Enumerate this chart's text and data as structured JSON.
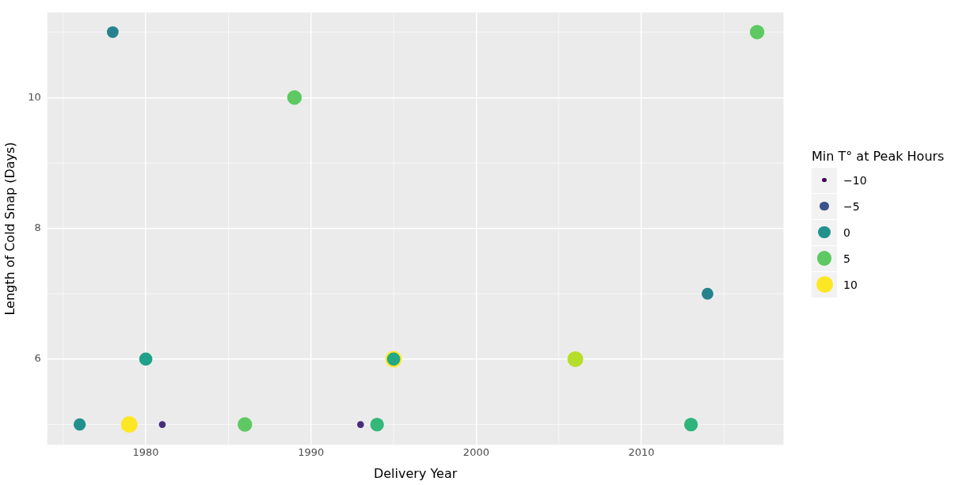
{
  "chart_data": {
    "type": "bubble",
    "xlabel": "Delivery Year",
    "ylabel": "Length of Cold Snap (Days)",
    "legend_title": "Min T° at Peak Hours",
    "grid": true,
    "x": [
      1976,
      1978,
      1979,
      1980,
      1981,
      1986,
      1989,
      1993,
      1994,
      1995,
      1995,
      2006,
      2013,
      2014,
      2017
    ],
    "values": [
      5,
      11,
      5,
      6,
      5,
      5,
      10,
      5,
      5,
      6,
      6,
      6,
      5,
      7,
      11
    ],
    "sizes": [
      0.54,
      0.5,
      1,
      0.63,
      0.17,
      0.77,
      0.77,
      0.17,
      0.68,
      1,
      0.63,
      0.91,
      0.68,
      0.5,
      0.77
    ],
    "colors": [
      "#21908d",
      "#26828e",
      "#fde725",
      "#1fa088",
      "#472d7b",
      "#5ec962",
      "#5ec962",
      "#472d7b",
      "#35b779",
      "#fde725",
      "#22a884",
      "#b5de2b",
      "#2fb47c",
      "#26828e",
      "#5ec962"
    ],
    "size_legend": [
      {
        "value": 0.08,
        "label": "−10"
      },
      {
        "value": 0.31,
        "label": "−5"
      },
      {
        "value": 0.54,
        "label": "0"
      },
      {
        "value": 0.77,
        "label": "5"
      },
      {
        "value": 1,
        "label": "10"
      }
    ],
    "xlim": [
      1974.04,
      2018.6
    ],
    "xticks": [
      1980,
      1990,
      2000,
      2010
    ],
    "ylim": [
      4.69,
      11.3
    ],
    "yticks": [
      6,
      8,
      10
    ]
  }
}
